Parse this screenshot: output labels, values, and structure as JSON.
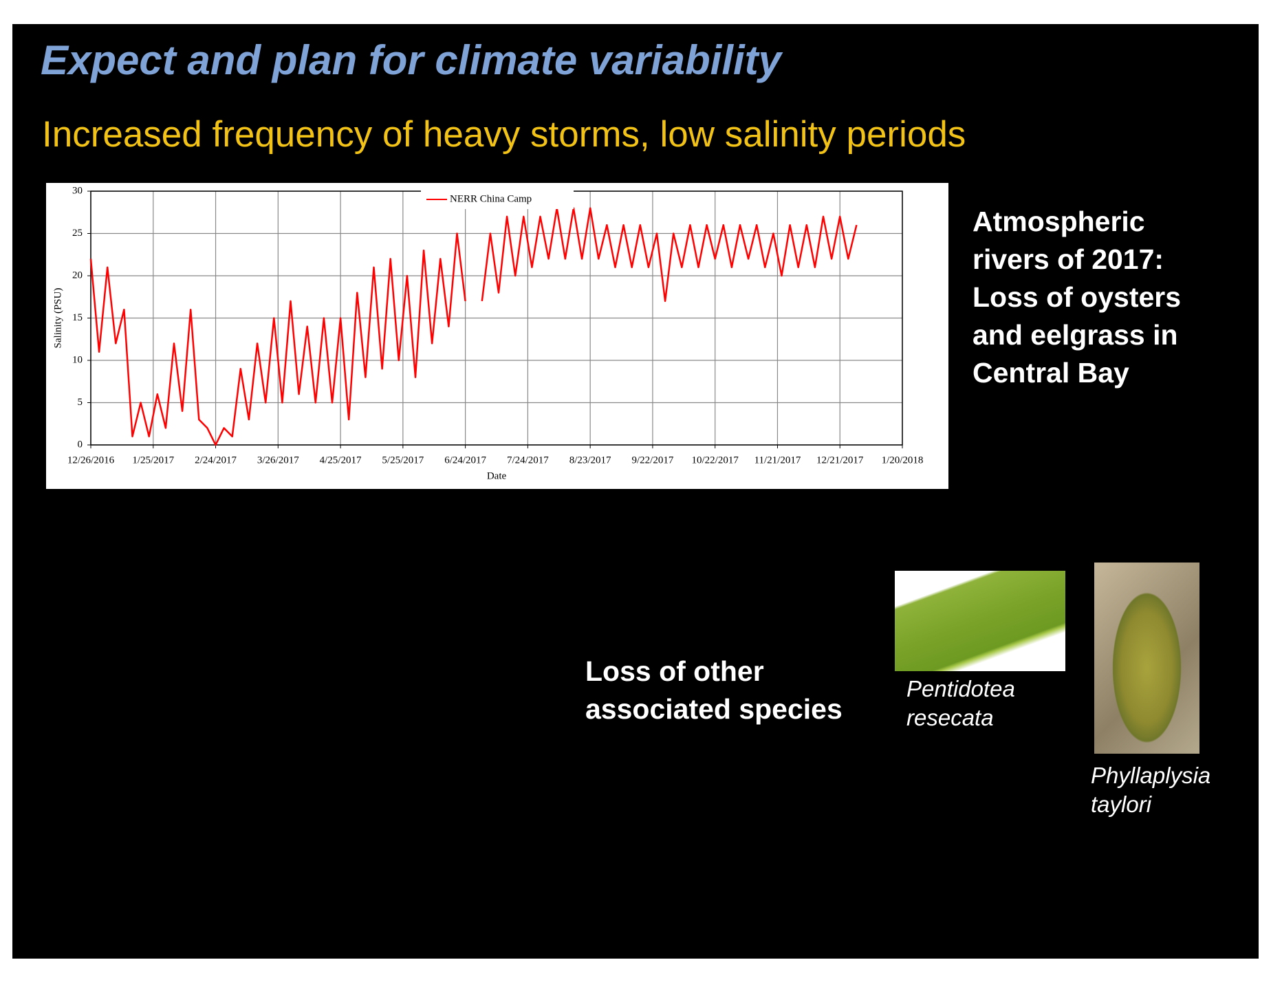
{
  "slide_title": "Expect and plan for climate variability",
  "subtitle": "Increased frequency of heavy storms, low salinity periods",
  "side_note": [
    "Atmospheric",
    "rivers of 2017:",
    "Loss of oysters",
    "and eelgrass in",
    "Central Bay"
  ],
  "species_note": [
    "Loss of other",
    "associated species"
  ],
  "captions": [
    [
      "Pentidotea",
      "resecata"
    ],
    [
      "Phyllaplysia",
      "taylori"
    ]
  ],
  "chart_data": {
    "type": "line",
    "x_label": "Date",
    "y_label": "Salinity (PSU)",
    "legend": "top center",
    "grid": true,
    "x": [
      "12/26/2016",
      "12/30/2016",
      "1/3/2017",
      "1/7/2017",
      "1/11/2017",
      "1/15/2017",
      "1/19/2017",
      "1/23/2017",
      "1/27/2017",
      "1/31/2017",
      "2/4/2017",
      "2/8/2017",
      "2/12/2017",
      "2/16/2017",
      "2/20/2017",
      "2/24/2017",
      "2/28/2017",
      "3/4/2017",
      "3/8/2017",
      "3/12/2017",
      "3/16/2017",
      "3/20/2017",
      "3/24/2017",
      "3/28/2017",
      "4/1/2017",
      "4/5/2017",
      "4/9/2017",
      "4/13/2017",
      "4/17/2017",
      "4/21/2017",
      "4/25/2017",
      "4/29/2017",
      "5/3/2017",
      "5/7/2017",
      "5/11/2017",
      "5/15/2017",
      "5/19/2017",
      "5/23/2017",
      "5/27/2017",
      "5/31/2017",
      "6/4/2017",
      "6/8/2017",
      "6/12/2017",
      "6/16/2017",
      "6/20/2017",
      "6/24/2017",
      "6/28/2017",
      "7/2/2017",
      "7/6/2017",
      "7/10/2017",
      "7/14/2017",
      "7/18/2017",
      "7/22/2017",
      "7/26/2017",
      "7/30/2017",
      "8/3/2017",
      "8/7/2017",
      "8/11/2017",
      "8/15/2017",
      "8/19/2017",
      "8/23/2017",
      "8/27/2017",
      "8/31/2017",
      "9/4/2017",
      "9/8/2017",
      "9/12/2017",
      "9/16/2017",
      "9/20/2017",
      "9/24/2017",
      "9/28/2017",
      "10/2/2017",
      "10/6/2017",
      "10/10/2017",
      "10/14/2017",
      "10/18/2017",
      "10/22/2017",
      "10/26/2017",
      "10/30/2017",
      "11/3/2017",
      "11/7/2017",
      "11/11/2017",
      "11/15/2017",
      "11/19/2017",
      "11/23/2017",
      "11/27/2017",
      "12/1/2017",
      "12/5/2017",
      "12/9/2017",
      "12/13/2017",
      "12/17/2017",
      "12/21/2017",
      "12/25/2017",
      "12/29/2017"
    ],
    "series": [
      {
        "name": "NERR China Camp",
        "color": "#ff0000",
        "values": [
          22,
          11,
          21,
          12,
          16,
          1,
          5,
          1,
          6,
          2,
          12,
          4,
          16,
          3,
          2,
          0,
          2,
          1,
          9,
          3,
          12,
          5,
          15,
          5,
          17,
          6,
          14,
          5,
          15,
          5,
          15,
          3,
          18,
          8,
          21,
          9,
          22,
          10,
          20,
          8,
          23,
          12,
          22,
          14,
          25,
          17,
          null,
          17,
          25,
          18,
          27,
          20,
          27,
          21,
          27,
          22,
          28,
          22,
          28,
          22,
          28,
          22,
          26,
          21,
          26,
          21,
          26,
          21,
          25,
          17,
          25,
          21,
          26,
          21,
          26,
          22,
          26,
          21,
          26,
          22,
          26,
          21,
          25,
          20,
          26,
          21,
          26,
          21,
          27,
          22,
          27,
          22,
          26
        ]
      }
    ],
    "xlim": [
      "12/26/2016",
      "1/20/2018"
    ],
    "xticks": [
      "12/26/2016",
      "1/25/2017",
      "2/24/2017",
      "3/26/2017",
      "4/25/2017",
      "5/25/2017",
      "6/24/2017",
      "7/24/2017",
      "8/23/2017",
      "9/22/2017",
      "10/22/2017",
      "11/21/2017",
      "12/21/2017",
      "1/20/2018"
    ],
    "ylim": [
      0,
      30
    ],
    "yticks": [
      0,
      5,
      10,
      15,
      20,
      25,
      30
    ]
  }
}
